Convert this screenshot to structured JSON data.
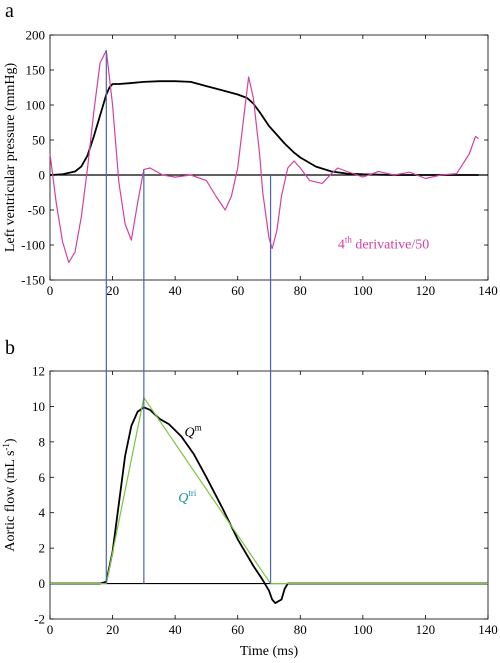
{
  "chart_data": [
    {
      "panel_label": "a",
      "type": "line",
      "xlabel": "",
      "ylabel": "Left ventricular pressure (mmHg)",
      "xlim": [
        0,
        140
      ],
      "ylim": [
        -150,
        200
      ],
      "xticks": [
        0,
        20,
        40,
        60,
        80,
        100,
        120,
        140
      ],
      "yticks": [
        -150,
        -100,
        -50,
        0,
        50,
        100,
        150,
        200
      ],
      "grid": false,
      "annotation": {
        "text": "4",
        "sup": "th",
        "rest": " derivative/50",
        "x": 92,
        "y": -105,
        "color": "#d4429c"
      },
      "series": [
        {
          "name": "",
          "color": "#000000",
          "x": [
            0,
            4,
            8,
            10,
            12,
            14,
            16,
            18,
            19,
            20,
            22,
            25,
            30,
            35,
            40,
            45,
            50,
            55,
            60,
            63,
            65,
            67,
            70,
            72,
            75,
            78,
            80,
            85,
            90,
            95,
            100,
            110,
            120,
            130,
            137
          ],
          "y": [
            0,
            1,
            5,
            12,
            28,
            55,
            85,
            115,
            125,
            130,
            130,
            131,
            133,
            134,
            134,
            133,
            127,
            121,
            115,
            110,
            102,
            90,
            70,
            60,
            45,
            32,
            25,
            12,
            5,
            2,
            1,
            0,
            0,
            0,
            0
          ]
        },
        {
          "name": "",
          "color": "#d4429c",
          "x": [
            0,
            2,
            4,
            6,
            8,
            10,
            12,
            14,
            16,
            18,
            20,
            22,
            24,
            26,
            28,
            30,
            32,
            34,
            36,
            40,
            45,
            50,
            53,
            56,
            58,
            60,
            62,
            63.5,
            65,
            67,
            68,
            70,
            71,
            72.5,
            74,
            76,
            78,
            80,
            83,
            87,
            90,
            92,
            95,
            100,
            105,
            110,
            115,
            120,
            125,
            130,
            134,
            136,
            137
          ],
          "y": [
            30,
            -40,
            -95,
            -125,
            -110,
            -60,
            10,
            90,
            160,
            178,
            100,
            -10,
            -70,
            -93,
            -40,
            8,
            10,
            5,
            0,
            -3,
            0,
            -8,
            -30,
            -50,
            -30,
            10,
            85,
            140,
            110,
            30,
            -25,
            -90,
            -105,
            -80,
            -30,
            10,
            20,
            10,
            -8,
            -12,
            2,
            10,
            5,
            -3,
            5,
            0,
            4,
            -5,
            0,
            2,
            30,
            55,
            52
          ]
        }
      ]
    },
    {
      "panel_label": "b",
      "type": "line",
      "xlabel": "Time (ms)",
      "ylabel": "Aortic flow (mL s",
      "ylabel_sup": "-1",
      "ylabel_end": ")",
      "xlim": [
        0,
        140
      ],
      "ylim": [
        -2,
        12
      ],
      "xticks": [
        0,
        20,
        40,
        60,
        80,
        100,
        120,
        140
      ],
      "yticks": [
        -2,
        0,
        2,
        4,
        6,
        8,
        10,
        12
      ],
      "grid": false,
      "annotations": [
        {
          "text": "Q",
          "sup": "m",
          "x": 43,
          "y": 8.3,
          "color": "#000000"
        },
        {
          "text": "Q",
          "sup": "tri",
          "x": 41,
          "y": 4.6,
          "color": "#1e8fb4"
        }
      ],
      "series": [
        {
          "name": "",
          "color": "#000000",
          "x": [
            0,
            16,
            18,
            20,
            22,
            24,
            26,
            28,
            30,
            32,
            35,
            38,
            42,
            46,
            50,
            55,
            60,
            65,
            68,
            70,
            71,
            72,
            74,
            75,
            76,
            78,
            80,
            140
          ],
          "y": [
            0,
            0,
            0.1,
            1.8,
            4.5,
            7.2,
            8.9,
            9.7,
            9.95,
            9.8,
            9.3,
            9,
            8.3,
            7.3,
            6,
            4.3,
            2.5,
            1,
            0.2,
            -0.4,
            -0.9,
            -1.1,
            -0.9,
            -0.3,
            0,
            0,
            0,
            0
          ]
        },
        {
          "name": "",
          "color": "#7bc63c",
          "x": [
            0,
            18,
            30,
            70.5,
            140
          ],
          "y": [
            0,
            0,
            10.5,
            0,
            0
          ]
        }
      ]
    }
  ],
  "vertical_lines": {
    "color": "#4a63b8",
    "x": [
      18,
      30,
      70.5
    ]
  }
}
